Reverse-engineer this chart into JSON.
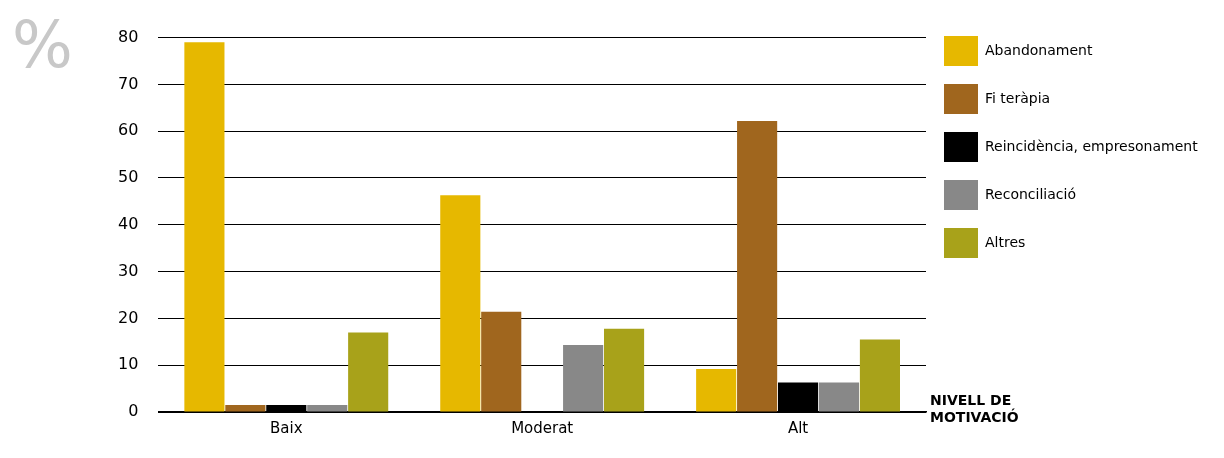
{
  "chart_data": {
    "type": "bar",
    "ylabel": "%",
    "xlabel": "NIVELL DE MOTIVACIÓ",
    "categories": [
      "Baix",
      "Moderat",
      "Alt"
    ],
    "series": [
      {
        "name": "Abandonament",
        "color": "#e6b800",
        "values": [
          79,
          46.3,
          9.2
        ]
      },
      {
        "name": "Fi teràpia",
        "color": "#a0661e",
        "values": [
          1.5,
          21.4,
          62.2
        ]
      },
      {
        "name": "Reincidència, empresonament",
        "color": "#000000",
        "values": [
          1.5,
          0,
          6.3
        ]
      },
      {
        "name": "Reconciliació",
        "color": "#888888",
        "values": [
          1.5,
          14.3,
          6.3
        ]
      },
      {
        "name": "Altres",
        "color": "#a8a21a",
        "values": [
          17,
          17.8,
          15.5
        ]
      }
    ],
    "ylim": [
      0,
      80
    ],
    "yticks": [
      0,
      10,
      20,
      30,
      40,
      50,
      60,
      70,
      80
    ],
    "grid": "y",
    "legend": "right"
  }
}
